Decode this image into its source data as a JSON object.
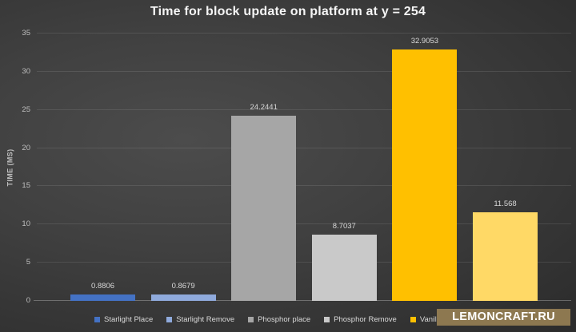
{
  "watermark": {
    "text": "LEMONCRAFT.RU",
    "background": "#8d7850"
  },
  "chart_data": {
    "type": "bar",
    "title": "Time for block update on platform at y = 254",
    "xlabel": "",
    "ylabel": "TIME (MS)",
    "ylim": [
      0,
      35
    ],
    "yticks": [
      0,
      5,
      10,
      15,
      20,
      25,
      30,
      35
    ],
    "grid": true,
    "legend_position": "bottom",
    "background": "dark-gray-radial-gradient",
    "series": [
      {
        "name": "Starlight Place",
        "value": 0.8806,
        "data_label": "0.8806",
        "color": "#4472c4"
      },
      {
        "name": "Starlight Remove",
        "value": 0.8679,
        "data_label": "0.8679",
        "color": "#8faadc"
      },
      {
        "name": "Phosphor place",
        "value": 24.2441,
        "data_label": "24.2441",
        "color": "#a6a6a6"
      },
      {
        "name": "Phosphor Remove",
        "value": 8.7037,
        "data_label": "8.7037",
        "color": "#c9c9c9"
      },
      {
        "name": "Vanilla place",
        "value": 32.9053,
        "data_label": "32.9053",
        "color": "#ffc000"
      },
      {
        "name": "",
        "legend_label_hidden_by_watermark": true,
        "value": 11.568,
        "data_label": "11.568",
        "color": "#ffd966"
      }
    ]
  }
}
